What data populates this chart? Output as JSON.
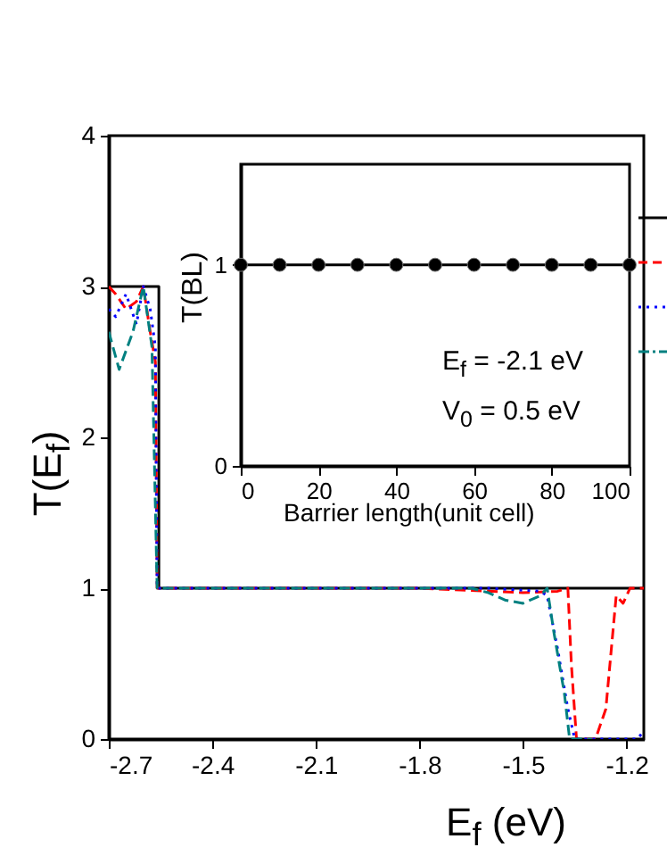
{
  "chart_data": [
    {
      "type": "line",
      "xlabel": "E$_{f}$ (eV)",
      "ylabel": "T(E$_{f}$)",
      "xlim": [
        -2.7,
        -1.15
      ],
      "ylim": [
        0,
        4
      ],
      "xticks": [
        -2.7,
        -2.4,
        -2.1,
        -1.8,
        -1.5,
        -1.2
      ],
      "yticks": [
        0,
        1,
        2,
        3,
        4
      ],
      "grid": false,
      "series": [
        {
          "color": "#000000",
          "line_style": "solid",
          "x": [
            -2.7,
            -2.555,
            -2.555,
            -1.15
          ],
          "values": [
            3,
            3,
            1,
            1
          ]
        },
        {
          "color": "#ff0000",
          "line_style": "dashed",
          "x": [
            -2.7,
            -2.68,
            -2.65,
            -2.62,
            -2.6,
            -2.58,
            -2.565,
            -2.56,
            -1.8,
            -1.5,
            -1.4,
            -1.37,
            -1.36,
            -1.345,
            -1.29,
            -1.26,
            -1.23,
            -1.21,
            -1.19,
            -1.15
          ],
          "values": [
            3,
            2.95,
            2.85,
            2.9,
            3,
            2.7,
            2.5,
            1,
            1,
            0.97,
            0.98,
            1,
            0.5,
            0,
            0,
            0.2,
            0.95,
            0.9,
            1,
            1
          ]
        },
        {
          "color": "#0000ff",
          "line_style": "dotted",
          "x": [
            -2.7,
            -2.68,
            -2.65,
            -2.62,
            -2.6,
            -2.58,
            -2.565,
            -2.56,
            -1.6,
            -1.45,
            -1.43,
            -1.4,
            -1.37,
            -1.35,
            -1.17,
            -1.15
          ],
          "values": [
            2.85,
            2.8,
            2.95,
            2.75,
            3,
            2.85,
            2.6,
            1,
            1,
            0.98,
            0.95,
            0.6,
            0.2,
            0,
            0,
            0.05
          ]
        },
        {
          "color": "#008080",
          "line_style": "dashed",
          "x": [
            -2.7,
            -2.67,
            -2.63,
            -2.6,
            -2.575,
            -2.56,
            -1.65,
            -1.6,
            -1.55,
            -1.5,
            -1.45,
            -1.43,
            -1.41,
            -1.38,
            -1.365,
            -1.3
          ],
          "values": [
            2.7,
            2.45,
            2.7,
            3,
            2.6,
            1,
            1,
            0.97,
            0.92,
            0.9,
            0.95,
            1,
            0.7,
            0.3,
            0,
            0
          ]
        }
      ]
    },
    {
      "type": "line",
      "xlabel": "Barrier length(unit cell)",
      "ylabel": "T(BL)",
      "xlim": [
        0,
        100
      ],
      "ylim": [
        0,
        1.5
      ],
      "xticks": [
        0,
        20,
        40,
        60,
        80,
        100
      ],
      "yticks": [
        0,
        1
      ],
      "grid": false,
      "marker": "circle",
      "annotations": [
        "E$_{f}$  = -2.1 eV",
        "V$_{0}$ =  0.5 eV"
      ],
      "series": [
        {
          "color": "#000000",
          "line_style": "solid",
          "x": [
            0,
            10,
            20,
            30,
            40,
            50,
            60,
            70,
            80,
            90,
            100
          ],
          "values": [
            1,
            1,
            1,
            1,
            1,
            1,
            1,
            1,
            1,
            1,
            1
          ]
        }
      ]
    }
  ]
}
